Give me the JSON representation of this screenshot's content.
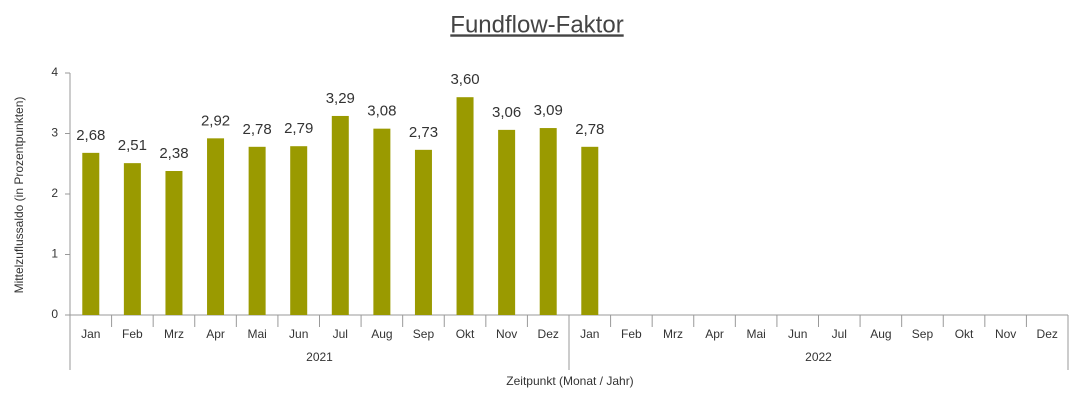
{
  "chart_data": {
    "type": "bar",
    "title": "Fundflow-Faktor",
    "y_label": "Mittelzuflussaldo (in Prozentpunkten)",
    "x_label": "Zeitpunkt (Monat / Jahr)",
    "categories": [
      "Jan",
      "Feb",
      "Mrz",
      "Apr",
      "Mai",
      "Jun",
      "Jul",
      "Aug",
      "Sep",
      "Okt",
      "Nov",
      "Dez",
      "Jan",
      "Feb",
      "Mrz",
      "Apr",
      "Mai",
      "Jun",
      "Jul",
      "Aug",
      "Sep",
      "Okt",
      "Nov",
      "Dez"
    ],
    "x_groups": [
      "2021",
      "2022"
    ],
    "values": [
      2.68,
      2.51,
      2.38,
      2.92,
      2.78,
      2.79,
      3.29,
      3.08,
      2.73,
      3.6,
      3.06,
      3.09,
      2.78,
      null,
      null,
      null,
      null,
      null,
      null,
      null,
      null,
      null,
      null,
      null
    ],
    "value_labels": [
      "2,68",
      "2,51",
      "2,38",
      "2,92",
      "2,78",
      "2,79",
      "3,29",
      "3,08",
      "2,73",
      "3,60",
      "3,06",
      "3,09",
      "2,78",
      null,
      null,
      null,
      null,
      null,
      null,
      null,
      null,
      null,
      null,
      null
    ],
    "color": "#9a9a00",
    "ylim": [
      0,
      4
    ],
    "yticks": [
      0,
      1,
      2,
      3,
      4
    ],
    "grid": false
  }
}
